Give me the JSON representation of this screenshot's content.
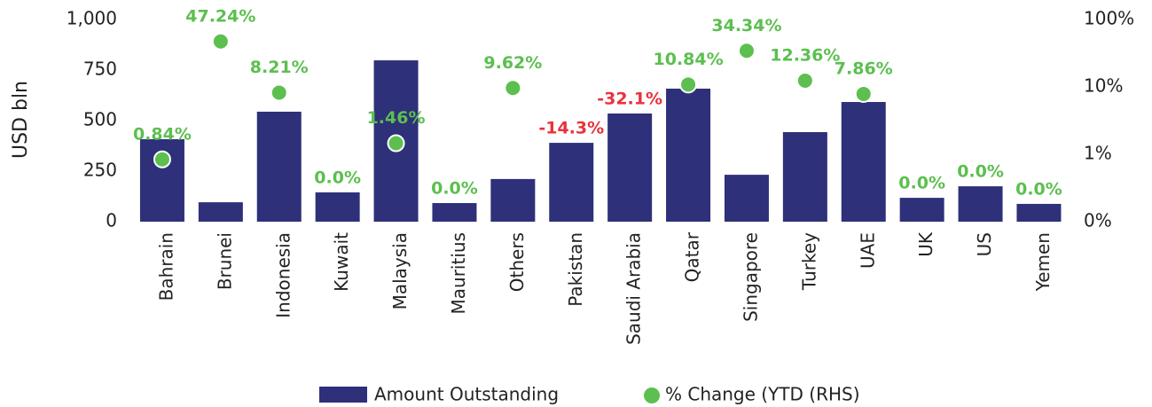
{
  "chart_data": {
    "type": "bar_line",
    "y_label": "USD bln",
    "categories": [
      "Bahrain",
      "Brunei",
      "Indonesia",
      "Kuwait",
      "Malaysia",
      "Mauritius",
      "Others",
      "Pakistan",
      "Saudi Arabia",
      "Qatar",
      "Singapore",
      "Turkey",
      "UAE",
      "UK",
      "US",
      "Yemen"
    ],
    "series": [
      {
        "name": "Amount Outstanding",
        "color": "#2e3079",
        "type": "bar",
        "values": [
          408,
          96,
          544,
          145,
          798,
          92,
          211,
          390,
          535,
          658,
          232,
          443,
          592,
          118,
          175,
          88
        ]
      },
      {
        "name": "% Change (YTD (RHS)",
        "color": "#5cbf4f",
        "negative_color": "#e8323c",
        "type": "scatter",
        "axis": "y2",
        "values": [
          0.84,
          47.24,
          8.21,
          0.0,
          1.46,
          0.0,
          9.62,
          -14.3,
          -32.1,
          10.84,
          34.34,
          12.36,
          7.86,
          0.0,
          0.0,
          0.0
        ],
        "value_labels": [
          "0.84%",
          "47.24%",
          "8.21%",
          "0.0%",
          "1.46%",
          "0.0%",
          "9.62%",
          "-14.3%",
          "-32.1%",
          "10.84%",
          "34.34%",
          "12.36%",
          "7.86%",
          "0.0%",
          "0.0%",
          "0.0%"
        ]
      }
    ],
    "ylim": [
      0,
      1000
    ],
    "yticks": [
      0,
      250,
      500,
      750,
      {
        "value": 1000,
        "label": "1,000"
      }
    ],
    "y2lim": [
      0.1,
      100
    ],
    "y2log": true,
    "y2ticks": [
      {
        "value": 0.1,
        "label": "0%"
      },
      {
        "value": 1,
        "label": "1%"
      },
      {
        "value": 10,
        "label": "10%"
      },
      {
        "value": 100,
        "label": "100%"
      }
    ],
    "legend": "bottom"
  }
}
